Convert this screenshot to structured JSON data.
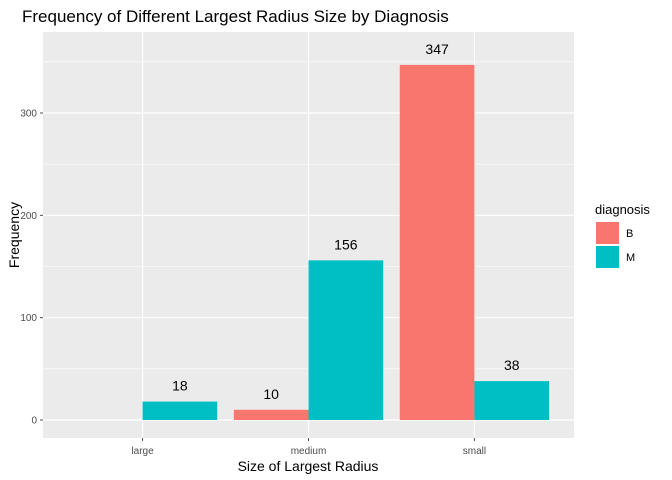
{
  "chart_data": {
    "type": "bar",
    "title": "Frequency of Different Largest Radius Size by Diagnosis",
    "xlabel": "Size of Largest Radius",
    "ylabel": "Frequency",
    "categories": [
      "large",
      "medium",
      "small"
    ],
    "series": [
      {
        "name": "B",
        "color": "#F8766D",
        "values": [
          null,
          10,
          347
        ]
      },
      {
        "name": "M",
        "color": "#00BFC4",
        "values": [
          18,
          156,
          38
        ]
      }
    ],
    "ylim": [
      0,
      364
    ],
    "yticks": [
      0,
      100,
      200,
      300
    ],
    "grid": true,
    "legend": {
      "title": "diagnosis",
      "position": "right"
    },
    "data_labels": true,
    "colors": {
      "panel": "#ebebeb",
      "grid": "#ffffff",
      "tick": "#4d4d4d"
    }
  }
}
